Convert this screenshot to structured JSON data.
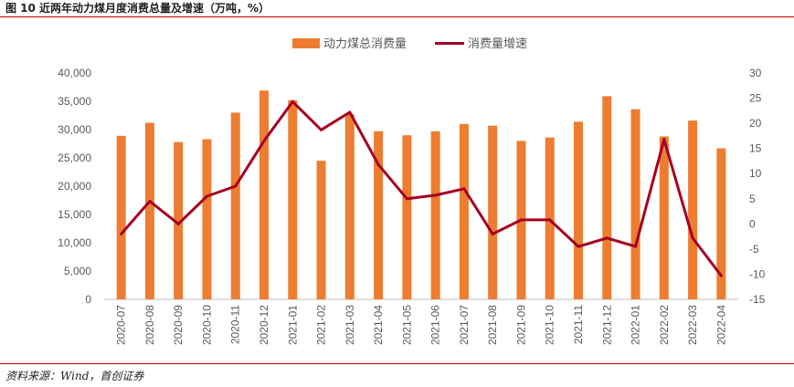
{
  "header": {
    "title": "图 10 近两年动力煤月度消费总量及增速（万吨，%）"
  },
  "footer": {
    "source": "资料来源：Wind，首创证券"
  },
  "colors": {
    "bar": "#ED7D31",
    "line": "#A50021",
    "rule": "#C00000"
  },
  "chart_data": {
    "type": "bar",
    "title": "近两年动力煤月度消费总量及增速（万吨，%）",
    "categories": [
      "2020-07",
      "2020-08",
      "2020-09",
      "2020-10",
      "2020-11",
      "2020-12",
      "2021-01",
      "2021-02",
      "2021-03",
      "2021-04",
      "2021-05",
      "2021-06",
      "2021-07",
      "2021-08",
      "2021-09",
      "2021-10",
      "2021-11",
      "2021-12",
      "2022-01",
      "2022-02",
      "2022-03",
      "2022-04"
    ],
    "series": [
      {
        "name": "动力煤总消费量",
        "type": "bar",
        "axis": "left",
        "values": [
          28900,
          31200,
          27800,
          28300,
          33000,
          36900,
          35200,
          24500,
          32700,
          29700,
          29000,
          29700,
          31000,
          30700,
          28000,
          28600,
          31400,
          35900,
          33600,
          28800,
          31600,
          26700
        ]
      },
      {
        "name": "消费量增速",
        "type": "line",
        "axis": "right",
        "values": [
          -2.0,
          4.5,
          0.0,
          5.5,
          7.5,
          16.5,
          24.3,
          18.7,
          22.2,
          11.8,
          5.0,
          5.7,
          7.0,
          -2.0,
          0.8,
          0.8,
          -4.5,
          -2.8,
          -4.5,
          16.8,
          -2.8,
          -10.3
        ]
      }
    ],
    "y_left": {
      "min": 0,
      "max": 40000,
      "step": 5000,
      "ticks": [
        "0",
        "5,000",
        "10,000",
        "15,000",
        "20,000",
        "25,000",
        "30,000",
        "35,000",
        "40,000"
      ]
    },
    "y_right": {
      "min": -15,
      "max": 30,
      "step": 5,
      "ticks": [
        "-15",
        "-10",
        "-5",
        "0",
        "5",
        "10",
        "15",
        "20",
        "25",
        "30"
      ]
    },
    "legend": [
      "动力煤总消费量",
      "消费量增速"
    ],
    "legend_position": "top",
    "grid": false
  }
}
